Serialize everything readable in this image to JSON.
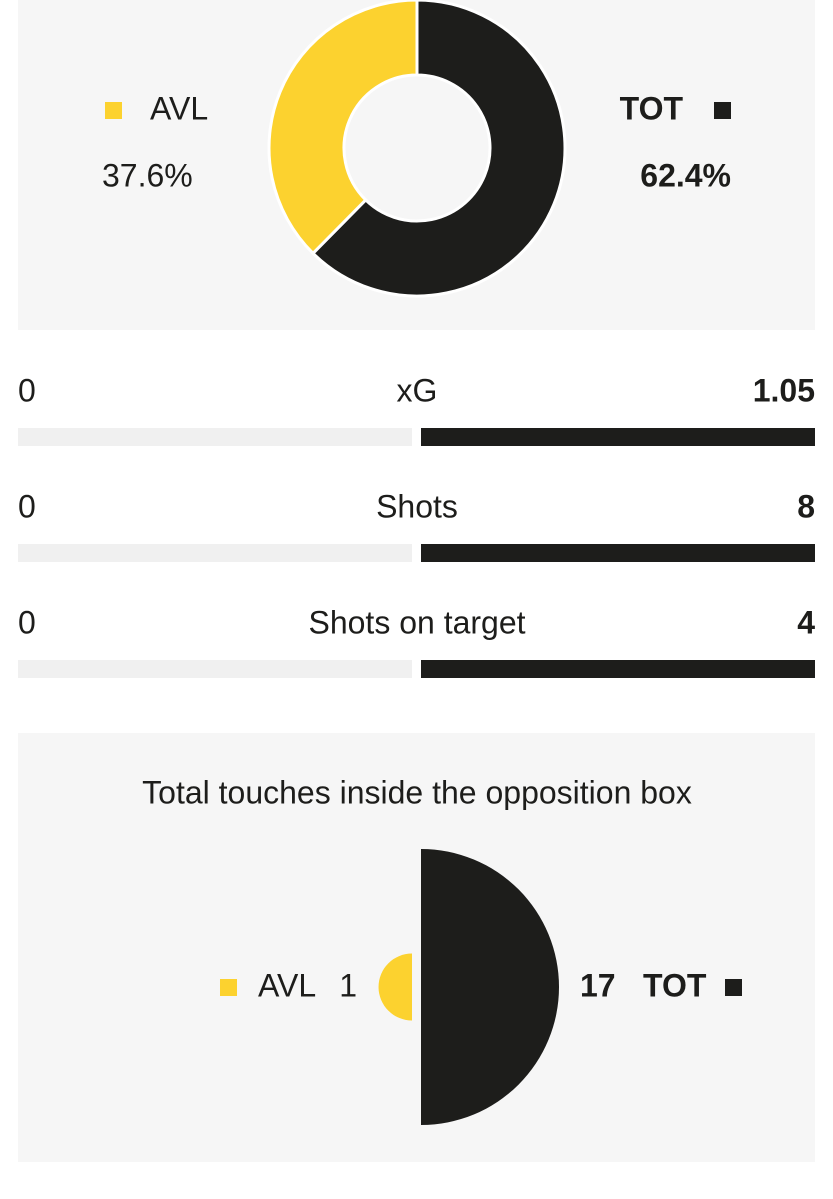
{
  "chart_data": [
    {
      "type": "donut",
      "categories": [
        "AVL",
        "TOT"
      ],
      "values": [
        37.6,
        62.4
      ],
      "value_labels": [
        "37.6%",
        "62.4%"
      ],
      "colors": [
        "#fcd22f",
        "#1d1d1b"
      ]
    },
    {
      "type": "bar",
      "categories": [
        "xG",
        "Shots",
        "Shots on target"
      ],
      "series": [
        {
          "color": "#fcd22f",
          "values": [
            0,
            0,
            0
          ]
        },
        {
          "color": "#1d1d1b",
          "values": [
            1.05,
            8,
            4
          ]
        }
      ]
    },
    {
      "type": "semicircle",
      "title": "Total touches inside the opposition box",
      "categories": [
        "AVL",
        "TOT"
      ],
      "values": [
        1,
        17
      ],
      "colors": [
        "#fcd22f",
        "#1d1d1b"
      ]
    }
  ]
}
